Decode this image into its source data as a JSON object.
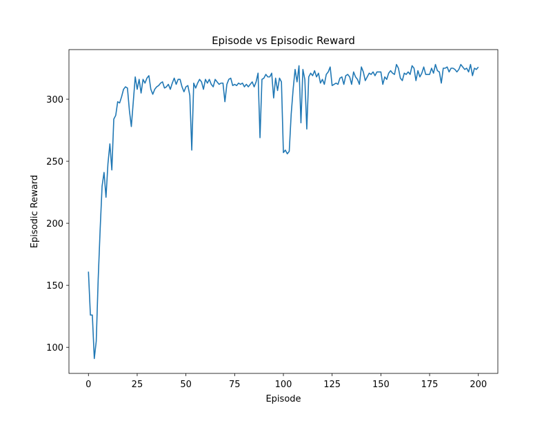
{
  "chart_data": {
    "type": "line",
    "title": "Episode vs Episodic Reward",
    "xlabel": "Episode",
    "ylabel": "Episodic Reward",
    "x": [
      0,
      1,
      2,
      3,
      4,
      5,
      6,
      7,
      8,
      9,
      10,
      11,
      12,
      13,
      14,
      15,
      16,
      17,
      18,
      19,
      20,
      21,
      22,
      23,
      24,
      25,
      26,
      27,
      28,
      29,
      30,
      31,
      32,
      33,
      34,
      35,
      36,
      37,
      38,
      39,
      40,
      41,
      42,
      43,
      44,
      45,
      46,
      47,
      48,
      49,
      50,
      51,
      52,
      53,
      54,
      55,
      56,
      57,
      58,
      59,
      60,
      61,
      62,
      63,
      64,
      65,
      66,
      67,
      68,
      69,
      70,
      71,
      72,
      73,
      74,
      75,
      76,
      77,
      78,
      79,
      80,
      81,
      82,
      83,
      84,
      85,
      86,
      87,
      88,
      89,
      90,
      91,
      92,
      93,
      94,
      95,
      96,
      97,
      98,
      99,
      100,
      101,
      102,
      103,
      104,
      105,
      106,
      107,
      108,
      109,
      110,
      111,
      112,
      113,
      114,
      115,
      116,
      117,
      118,
      119,
      120,
      121,
      122,
      123,
      124,
      125,
      126,
      127,
      128,
      129,
      130,
      131,
      132,
      133,
      134,
      135,
      136,
      137,
      138,
      139,
      140,
      141,
      142,
      143,
      144,
      145,
      146,
      147,
      148,
      149,
      150,
      151,
      152,
      153,
      154,
      155,
      156,
      157,
      158,
      159,
      160,
      161,
      162,
      163,
      164,
      165,
      166,
      167,
      168,
      169,
      170,
      171,
      172,
      173,
      174,
      175,
      176,
      177,
      178,
      179,
      180,
      181,
      182,
      183,
      184,
      185,
      186,
      187,
      188,
      189,
      190,
      191,
      192,
      193,
      194,
      195,
      196,
      197,
      198,
      199,
      200
    ],
    "values": [
      161,
      126,
      126,
      91,
      105,
      155,
      195,
      230,
      241,
      221,
      248,
      264,
      243,
      284,
      287,
      298,
      297,
      302,
      308,
      310,
      309,
      291,
      278,
      298,
      318,
      308,
      316,
      305,
      316,
      313,
      317,
      319,
      308,
      304,
      308,
      310,
      311,
      313,
      314,
      309,
      310,
      312,
      308,
      313,
      317,
      312,
      316,
      316,
      310,
      306,
      310,
      311,
      303,
      259,
      313,
      309,
      313,
      316,
      314,
      308,
      316,
      313,
      316,
      312,
      310,
      316,
      314,
      312,
      313,
      313,
      298,
      312,
      316,
      317,
      311,
      312,
      311,
      313,
      312,
      313,
      310,
      312,
      310,
      312,
      314,
      310,
      314,
      321,
      269,
      316,
      317,
      320,
      318,
      318,
      321,
      301,
      317,
      307,
      317,
      314,
      257,
      259,
      256,
      258,
      288,
      308,
      324,
      314,
      327,
      281,
      324,
      316,
      276,
      318,
      321,
      319,
      323,
      318,
      321,
      313,
      316,
      312,
      320,
      322,
      326,
      311,
      312,
      313,
      312,
      317,
      318,
      312,
      319,
      320,
      318,
      312,
      322,
      318,
      316,
      312,
      326,
      322,
      315,
      318,
      321,
      320,
      322,
      319,
      322,
      322,
      322,
      312,
      318,
      316,
      321,
      323,
      321,
      320,
      328,
      325,
      317,
      315,
      321,
      320,
      322,
      320,
      327,
      325,
      315,
      323,
      318,
      321,
      326,
      320,
      320,
      320,
      325,
      321,
      328,
      323,
      322,
      313,
      325,
      325,
      326,
      322,
      325,
      325,
      324,
      322,
      324,
      328,
      326,
      324,
      325,
      322,
      328,
      319,
      325,
      324,
      326
    ],
    "color": "#1f77b4",
    "xlim": [
      -10,
      210
    ],
    "ylim": [
      79,
      340
    ],
    "xticks": [
      0,
      25,
      50,
      75,
      100,
      125,
      150,
      175,
      200
    ],
    "yticks": [
      100,
      150,
      200,
      250,
      300
    ]
  }
}
